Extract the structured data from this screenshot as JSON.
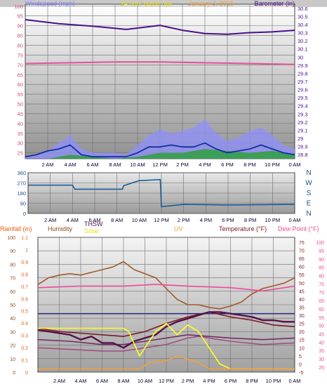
{
  "header": {
    "title": "24 hour graph day",
    "date": "January 3, 2016",
    "left_label": "Windspeed (mph)",
    "right_label": "Barometer (in)"
  },
  "chart_data": [
    {
      "type": "line",
      "title": "24 hour graph day",
      "xlabels": [
        "2 AM",
        "4 AM",
        "6 AM",
        "8 AM",
        "10 AM",
        "12 PM",
        "2 PM",
        "4 PM",
        "6 PM",
        "8 PM",
        "10 PM",
        "0 AM"
      ],
      "left_axis": {
        "label": "Windspeed (mph)",
        "ticks": [
          25,
          30,
          35,
          40,
          45,
          50,
          55,
          60,
          65,
          70,
          75,
          80,
          85,
          90,
          95,
          100
        ],
        "ylim": [
          22,
          101
        ]
      },
      "right_axis": {
        "label": "Barometer (in)",
        "ticks": [
          "28.8",
          "28.9",
          "29",
          "29.1",
          "29.2",
          "29.3",
          "29.4",
          "29.5",
          "29.6",
          "29.7",
          "29.8",
          "29.9",
          "30",
          "30.1",
          "30.2",
          "30.3",
          "30.4",
          "30.5",
          "30.6"
        ],
        "ylim": [
          28.75,
          30.65
        ]
      },
      "series": [
        {
          "color": "#4b0f8c",
          "unit": "in",
          "x": [
            0,
            3,
            6,
            9,
            12,
            14,
            16,
            18,
            20,
            22,
            24
          ],
          "y": [
            30.46,
            30.41,
            30.38,
            30.34,
            30.39,
            30.33,
            30.29,
            30.28,
            30.3,
            30.31,
            30.33
          ]
        },
        {
          "color": "#e0509a",
          "unit": "in",
          "x": [
            0,
            4,
            8,
            12,
            16,
            20,
            24
          ],
          "y": [
            29.92,
            29.93,
            29.94,
            29.94,
            29.93,
            29.92,
            29.91
          ]
        },
        {
          "color": "#8080ff",
          "unit": "mph",
          "x": [
            0,
            1,
            2,
            3,
            4,
            5,
            6,
            7,
            8,
            9,
            10,
            11,
            12,
            13,
            14,
            15,
            16,
            17,
            18,
            19,
            20,
            21,
            22,
            23,
            24
          ],
          "y": [
            23,
            24,
            26,
            30,
            34,
            27,
            25,
            25,
            25,
            24,
            29,
            34,
            37,
            35,
            36,
            38,
            42,
            35,
            31,
            33,
            36,
            38,
            34,
            29,
            27
          ]
        },
        {
          "color": "#2ea040",
          "unit": "mph",
          "x": [
            0,
            2,
            4,
            6,
            8,
            10,
            12,
            14,
            16,
            18,
            20,
            22,
            24
          ],
          "y": [
            22,
            22,
            24,
            23,
            22,
            23,
            25,
            25,
            27,
            26,
            25,
            26,
            24
          ]
        },
        {
          "color": "#1030a0",
          "unit": "mph",
          "x": [
            0,
            1,
            2,
            3,
            4,
            5,
            6,
            7,
            8,
            9,
            10,
            11,
            12,
            13,
            14,
            15,
            16,
            17,
            18,
            19,
            20,
            21,
            22,
            23,
            24
          ],
          "y": [
            23,
            24,
            26,
            27,
            29,
            24,
            23,
            23,
            23,
            23,
            25,
            28,
            28,
            29,
            28,
            28,
            30,
            27,
            25,
            26,
            27,
            29,
            27,
            25,
            24
          ]
        }
      ]
    },
    {
      "type": "line",
      "xlabels": [
        "2 AM",
        "4 AM",
        "6 AM",
        "8 AM",
        "10 AM",
        "12 PM",
        "2 PM",
        "4 PM",
        "6 PM",
        "8 PM",
        "10 PM",
        "0 AM"
      ],
      "left_axis": {
        "ticks": [
          0,
          90,
          180,
          270,
          360
        ],
        "ylim": [
          0,
          360
        ]
      },
      "right_labels": [
        "N",
        "W",
        "S",
        "E",
        "N"
      ],
      "series": [
        {
          "color": "#1a5c9a",
          "unit": "deg",
          "x": [
            0,
            2,
            4,
            4.2,
            7.5,
            8.5,
            8.6,
            10,
            11,
            11.9,
            12,
            14,
            18,
            24
          ],
          "y": [
            250,
            250,
            250,
            215,
            215,
            215,
            245,
            290,
            295,
            300,
            60,
            80,
            75,
            80
          ]
        }
      ]
    },
    {
      "type": "line",
      "labels": {
        "rain": "Rainfall (in)",
        "humidity": "Humidity",
        "thsw": "THSW",
        "solar": "Solar",
        "uv": "UV",
        "temperature": "Temperature (°F)",
        "dew_point": "Dew Point (°F)"
      },
      "xlabels": [
        "2 AM",
        "4 AM",
        "6 AM",
        "8 AM",
        "10 AM",
        "12 PM",
        "2 PM",
        "4 PM",
        "6 PM",
        "8 PM",
        "10 PM",
        "0 AM"
      ],
      "axis_humidity": {
        "ticks": [
          0,
          10,
          20,
          30,
          40,
          50,
          60,
          70,
          80,
          90,
          100
        ],
        "ylim": [
          0,
          100
        ]
      },
      "axis_rain": {
        "ticks": [
          "0",
          "0.1",
          "0.2",
          "0.3",
          "0.4",
          "0.5",
          "0.6",
          "0.7",
          "0.8",
          "0.9",
          "1",
          "1.1"
        ],
        "ylim": [
          0,
          1.1
        ]
      },
      "axis_temp": {
        "ticks": [
          -5,
          0,
          5,
          10,
          15,
          20,
          25,
          30,
          35,
          40,
          45,
          50,
          55,
          60,
          65,
          70,
          75
        ],
        "ylim": [
          -5,
          78
        ]
      },
      "axis_dew": {
        "ticks": [
          25,
          30,
          35,
          40,
          45,
          50,
          55,
          60,
          65,
          70,
          75,
          80,
          85,
          90,
          95,
          100
        ],
        "ylim": [
          22,
          103
        ]
      },
      "series": [
        {
          "name": "Humidity",
          "color": "#a05a28",
          "unit": "%",
          "x": [
            0,
            1,
            2,
            3,
            4,
            5,
            6,
            7,
            8,
            9,
            10,
            11,
            12,
            13,
            14,
            15,
            16,
            17,
            18,
            19,
            20,
            21,
            22,
            23,
            24
          ],
          "y": [
            65,
            70,
            72,
            73,
            72,
            74,
            76,
            78,
            82,
            76,
            73,
            70,
            62,
            54,
            50,
            50,
            48,
            47,
            49,
            52,
            58,
            62,
            64,
            66,
            70
          ]
        },
        {
          "name": "Temperature",
          "color": "#ee4a9a",
          "unit": "°F",
          "x": [
            0,
            4,
            8,
            11,
            14,
            18,
            21,
            24
          ],
          "y": [
            47,
            48,
            48,
            49,
            48,
            47,
            45,
            48
          ]
        },
        {
          "color": "#30308a",
          "unit": "°F",
          "x": [
            0,
            24
          ],
          "y": [
            31,
            31
          ]
        },
        {
          "name": "Dew Point",
          "color": "#55104a",
          "unit": "°F",
          "x": [
            0,
            1,
            2,
            3,
            4,
            5,
            6,
            7,
            8,
            9,
            10,
            11,
            12,
            13,
            14,
            15,
            16,
            17,
            18,
            19,
            20,
            21,
            22,
            23,
            24
          ],
          "y": [
            21,
            20,
            19,
            18,
            15,
            17,
            13,
            13,
            10,
            14,
            16,
            18,
            23,
            26,
            28,
            30,
            32,
            32,
            31,
            30,
            29,
            27,
            27,
            26,
            26
          ]
        },
        {
          "color": "#7a1a22",
          "unit": "°F",
          "x": [
            0,
            2,
            4,
            6,
            8,
            10,
            12,
            14,
            16,
            18,
            20,
            22,
            24
          ],
          "y": [
            22,
            20,
            19,
            18,
            17,
            20,
            25,
            29,
            32,
            29,
            27,
            24,
            23
          ]
        },
        {
          "color": "#a05080",
          "unit": "°F",
          "x": [
            0,
            3,
            6,
            8,
            10,
            12,
            14,
            15,
            16,
            18,
            21,
            24
          ],
          "y": [
            10,
            9,
            8,
            8,
            10,
            12,
            16,
            17,
            16,
            14,
            12,
            13
          ]
        },
        {
          "name": "THSW",
          "color": "#70306a",
          "unit": "°F",
          "x": [
            0,
            3,
            6,
            8,
            10,
            12,
            14,
            16,
            18,
            21,
            24
          ],
          "y": [
            15,
            14,
            12,
            12,
            14,
            16,
            18,
            17,
            16,
            15,
            16
          ]
        },
        {
          "name": "Solar",
          "color": "#ffff20",
          "unit": "W/m2",
          "x": [
            0,
            4,
            8,
            8.5,
            9.5,
            11,
            12,
            13,
            14,
            15,
            16,
            17,
            18,
            24
          ],
          "y": [
            22,
            22,
            22,
            20,
            5,
            20,
            25,
            18,
            24,
            20,
            10,
            0,
            -3,
            -3
          ]
        },
        {
          "name": "UV",
          "color": "#f0a040",
          "unit": "",
          "x": [
            0,
            9.5,
            10.5,
            12,
            13,
            14,
            15,
            16,
            24
          ],
          "y": [
            -3,
            -3,
            1,
            2,
            5,
            3,
            1,
            -3,
            -3
          ]
        }
      ]
    }
  ]
}
